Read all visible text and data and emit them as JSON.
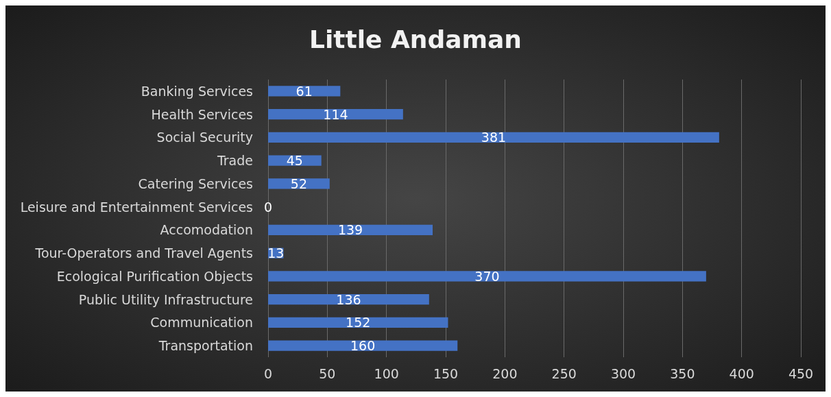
{
  "chart_data": {
    "type": "bar",
    "orientation": "horizontal",
    "title": "Little Andaman",
    "categories": [
      "Banking Services",
      "Health Services",
      "Social Security",
      "Trade",
      "Catering Services",
      "Leisure and Entertainment Services",
      "Accomodation",
      "Tour-Operators and Travel Agents",
      "Ecological Purification Objects",
      "Public Utility Infrastructure",
      "Communication",
      "Transportation"
    ],
    "values": [
      61,
      114,
      381,
      45,
      52,
      0,
      139,
      13,
      370,
      136,
      152,
      160
    ],
    "color": "#4472c4",
    "xlim": [
      0,
      450
    ],
    "xticks": [
      0,
      50,
      100,
      150,
      200,
      250,
      300,
      350,
      400,
      450
    ],
    "grid": "x",
    "data_labels": true
  }
}
